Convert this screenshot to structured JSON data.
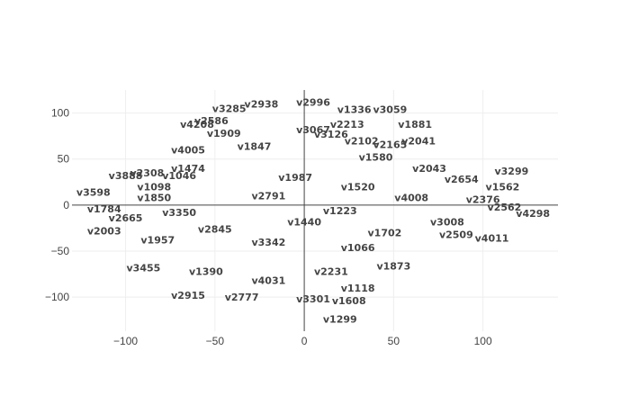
{
  "chart_data": {
    "type": "scatter",
    "title": "",
    "xlabel": "",
    "ylabel": "",
    "xlim": [
      -130,
      142
    ],
    "ylim": [
      -137,
      125
    ],
    "x_ticks": [
      -100,
      -50,
      0,
      50,
      100
    ],
    "y_ticks": [
      -100,
      -50,
      0,
      50,
      100
    ],
    "x_tick_labels": [
      "−100",
      "−50",
      "0",
      "50",
      "100"
    ],
    "y_tick_labels": [
      "−100",
      "−50",
      "0",
      "50",
      "100"
    ],
    "grid": true,
    "zero_lines": true,
    "mode": "text",
    "text_color": "#444444",
    "points": [
      {
        "label": "v3285",
        "x": -42,
        "y": 105
      },
      {
        "label": "v2938",
        "x": -24,
        "y": 110
      },
      {
        "label": "v2996",
        "x": 5,
        "y": 112
      },
      {
        "label": "v1336",
        "x": 28,
        "y": 104
      },
      {
        "label": "v3059",
        "x": 48,
        "y": 104
      },
      {
        "label": "v2586",
        "x": -52,
        "y": 92
      },
      {
        "label": "v4208",
        "x": -60,
        "y": 88
      },
      {
        "label": "v2213",
        "x": 24,
        "y": 88
      },
      {
        "label": "v1881",
        "x": 62,
        "y": 88
      },
      {
        "label": "v1909",
        "x": -45,
        "y": 78
      },
      {
        "label": "v3126",
        "x": 15,
        "y": 77
      },
      {
        "label": "v2102",
        "x": 32,
        "y": 70
      },
      {
        "label": "v2165",
        "x": 48,
        "y": 66
      },
      {
        "label": "v2041",
        "x": 64,
        "y": 70
      },
      {
        "label": "v3067",
        "x": 5,
        "y": 82
      },
      {
        "label": "v4005",
        "x": -65,
        "y": 60
      },
      {
        "label": "v1847",
        "x": -28,
        "y": 64
      },
      {
        "label": "v1580",
        "x": 40,
        "y": 52
      },
      {
        "label": "v1474",
        "x": -65,
        "y": 40
      },
      {
        "label": "v2043",
        "x": 70,
        "y": 40
      },
      {
        "label": "v2308",
        "x": -88,
        "y": 35
      },
      {
        "label": "v3299",
        "x": 116,
        "y": 37
      },
      {
        "label": "v3888",
        "x": -100,
        "y": 32
      },
      {
        "label": "v1046",
        "x": -70,
        "y": 32
      },
      {
        "label": "v1987",
        "x": -5,
        "y": 30
      },
      {
        "label": "v2654",
        "x": 88,
        "y": 28
      },
      {
        "label": "v1562",
        "x": 111,
        "y": 20
      },
      {
        "label": "v1098",
        "x": -84,
        "y": 20
      },
      {
        "label": "v1520",
        "x": 30,
        "y": 20
      },
      {
        "label": "v3598",
        "x": -118,
        "y": 14
      },
      {
        "label": "v2376",
        "x": 100,
        "y": 6
      },
      {
        "label": "v1850",
        "x": -84,
        "y": 8
      },
      {
        "label": "v2791",
        "x": -20,
        "y": 10
      },
      {
        "label": "v4008",
        "x": 60,
        "y": 8
      },
      {
        "label": "v2562",
        "x": 112,
        "y": -2
      },
      {
        "label": "v4298",
        "x": 128,
        "y": -9
      },
      {
        "label": "v1784",
        "x": -112,
        "y": -4
      },
      {
        "label": "v3350",
        "x": -70,
        "y": -8
      },
      {
        "label": "v1223",
        "x": 20,
        "y": -6
      },
      {
        "label": "v2665",
        "x": -100,
        "y": -14
      },
      {
        "label": "v1440",
        "x": 0,
        "y": -18
      },
      {
        "label": "v3008",
        "x": 80,
        "y": -18
      },
      {
        "label": "v2003",
        "x": -112,
        "y": -28
      },
      {
        "label": "v2845",
        "x": -50,
        "y": -26
      },
      {
        "label": "v1702",
        "x": 45,
        "y": -30
      },
      {
        "label": "v2509",
        "x": 85,
        "y": -32
      },
      {
        "label": "v4011",
        "x": 105,
        "y": -36
      },
      {
        "label": "v1957",
        "x": -82,
        "y": -38
      },
      {
        "label": "v3342",
        "x": -20,
        "y": -40
      },
      {
        "label": "v1066",
        "x": 30,
        "y": -46
      },
      {
        "label": "v3455",
        "x": -90,
        "y": -68
      },
      {
        "label": "v1390",
        "x": -55,
        "y": -72
      },
      {
        "label": "v2231",
        "x": 15,
        "y": -72
      },
      {
        "label": "v1873",
        "x": 50,
        "y": -66
      },
      {
        "label": "v4031",
        "x": -20,
        "y": -82
      },
      {
        "label": "v1118",
        "x": 30,
        "y": -90
      },
      {
        "label": "v2915",
        "x": -65,
        "y": -98
      },
      {
        "label": "v2777",
        "x": -35,
        "y": -100
      },
      {
        "label": "v3301",
        "x": 5,
        "y": -102
      },
      {
        "label": "v1608",
        "x": 25,
        "y": -104
      },
      {
        "label": "v1299",
        "x": 20,
        "y": -124
      }
    ]
  }
}
